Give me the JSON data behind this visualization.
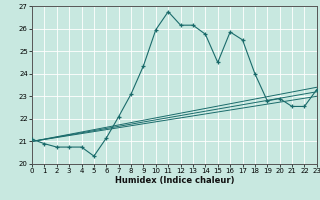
{
  "title": "",
  "xlabel": "Humidex (Indice chaleur)",
  "xlim": [
    0,
    23
  ],
  "ylim": [
    20,
    27
  ],
  "yticks": [
    20,
    21,
    22,
    23,
    24,
    25,
    26,
    27
  ],
  "xticks": [
    0,
    1,
    2,
    3,
    4,
    5,
    6,
    7,
    8,
    9,
    10,
    11,
    12,
    13,
    14,
    15,
    16,
    17,
    18,
    19,
    20,
    21,
    22,
    23
  ],
  "bg_color": "#c8e8e0",
  "grid_color": "#ffffff",
  "line_color": "#1a6b6b",
  "curve_x": [
    0,
    1,
    2,
    3,
    4,
    5,
    6,
    7,
    8,
    9,
    10,
    11,
    12,
    13,
    14,
    15,
    16,
    17,
    18,
    19,
    20,
    21,
    22,
    23
  ],
  "curve_y": [
    21.1,
    20.9,
    20.75,
    20.75,
    20.75,
    20.35,
    21.15,
    22.1,
    23.1,
    24.35,
    25.95,
    26.75,
    26.15,
    26.15,
    25.75,
    24.5,
    25.85,
    25.5,
    24.0,
    22.8,
    22.9,
    22.55,
    22.55,
    23.3
  ],
  "trend_lines": [
    [
      21.0,
      23.0
    ],
    [
      21.0,
      23.2
    ],
    [
      21.0,
      23.4
    ]
  ]
}
